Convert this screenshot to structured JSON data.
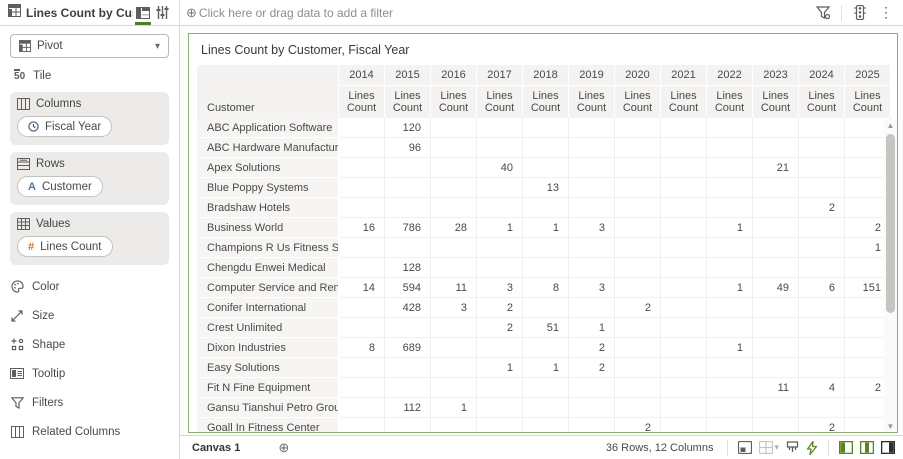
{
  "topbar": {
    "title": "Lines Count by Cust...",
    "filter_plus": "⊕",
    "filter_placeholder": "Click here or drag data to add a filter",
    "kebab": "⋮"
  },
  "sidebar": {
    "viz_type": "Pivot",
    "viz_caret": "▾",
    "tile_label": "Tile",
    "tile_glyph_5": "5",
    "tile_glyph_0": "0",
    "sections": {
      "columns": {
        "label": "Columns",
        "pill": "Fiscal Year"
      },
      "rows": {
        "label": "Rows",
        "pill": "Customer",
        "pill_glyph": "A"
      },
      "values": {
        "label": "Values",
        "pill": "Lines Count",
        "pill_glyph": "#"
      }
    },
    "options": [
      {
        "label": "Color"
      },
      {
        "label": "Size"
      },
      {
        "label": "Shape"
      },
      {
        "label": "Tooltip"
      },
      {
        "label": "Filters"
      },
      {
        "label": "Related Columns"
      }
    ]
  },
  "canvas": {
    "viz_title": "Lines Count by Customer, Fiscal Year"
  },
  "table": {
    "corner_label": "Customer",
    "measure_label": "Lines Count",
    "years": [
      "2014",
      "2015",
      "2016",
      "2017",
      "2018",
      "2019",
      "2020",
      "2021",
      "2022",
      "2023",
      "2024",
      "2025"
    ],
    "rows": [
      {
        "customer": "ABC Application Software",
        "values": [
          "",
          "120",
          "",
          "",
          "",
          "",
          "",
          "",
          "",
          "",
          "",
          ""
        ]
      },
      {
        "customer": "ABC Hardware Manufacturing",
        "values": [
          "",
          "96",
          "",
          "",
          "",
          "",
          "",
          "",
          "",
          "",
          "",
          ""
        ]
      },
      {
        "customer": "Apex Solutions",
        "values": [
          "",
          "",
          "",
          "40",
          "",
          "",
          "",
          "",
          "",
          "21",
          "",
          ""
        ]
      },
      {
        "customer": "Blue Poppy Systems",
        "values": [
          "",
          "",
          "",
          "",
          "13",
          "",
          "",
          "",
          "",
          "",
          "",
          ""
        ]
      },
      {
        "customer": "Bradshaw Hotels",
        "values": [
          "",
          "",
          "",
          "",
          "",
          "",
          "",
          "",
          "",
          "",
          "2",
          ""
        ]
      },
      {
        "customer": "Business World",
        "values": [
          "16",
          "786",
          "28",
          "1",
          "1",
          "3",
          "",
          "",
          "1",
          "",
          "",
          "2"
        ]
      },
      {
        "customer": "Champions R Us Fitness Store",
        "values": [
          "",
          "",
          "",
          "",
          "",
          "",
          "",
          "",
          "",
          "",
          "",
          "1"
        ]
      },
      {
        "customer": "Chengdu Enwei Medical",
        "values": [
          "",
          "128",
          "",
          "",
          "",
          "",
          "",
          "",
          "",
          "",
          "",
          ""
        ]
      },
      {
        "customer": "Computer Service and Rentals",
        "values": [
          "14",
          "594",
          "11",
          "3",
          "8",
          "3",
          "",
          "",
          "1",
          "49",
          "6",
          "151"
        ]
      },
      {
        "customer": "Conifer International",
        "values": [
          "",
          "428",
          "3",
          "2",
          "",
          "",
          "2",
          "",
          "",
          "",
          "",
          ""
        ]
      },
      {
        "customer": "Crest Unlimited",
        "values": [
          "",
          "",
          "",
          "2",
          "51",
          "1",
          "",
          "",
          "",
          "",
          "",
          ""
        ]
      },
      {
        "customer": "Dixon Industries",
        "values": [
          "8",
          "689",
          "",
          "",
          "",
          "2",
          "",
          "",
          "1",
          "",
          "",
          ""
        ]
      },
      {
        "customer": "Easy Solutions",
        "values": [
          "",
          "",
          "",
          "1",
          "1",
          "2",
          "",
          "",
          "",
          "",
          "",
          ""
        ]
      },
      {
        "customer": "Fit N Fine Equipment",
        "values": [
          "",
          "",
          "",
          "",
          "",
          "",
          "",
          "",
          "",
          "11",
          "4",
          "2"
        ]
      },
      {
        "customer": "Gansu Tianshui Petro Group",
        "values": [
          "",
          "112",
          "1",
          "",
          "",
          "",
          "",
          "",
          "",
          "",
          "",
          ""
        ]
      },
      {
        "customer": "Goall In Fitness Center",
        "values": [
          "",
          "",
          "",
          "",
          "",
          "",
          "2",
          "",
          "",
          "",
          "2",
          ""
        ]
      }
    ],
    "scroll_up": "▲",
    "scroll_down": "▼"
  },
  "statusbar": {
    "canvas_tab": "Canvas 1",
    "add_canvas": "⊕",
    "dimensions": "36 Rows, 12 Columns",
    "grid_caret": "▾"
  },
  "colors": {
    "accent_green": "#4f7d2b",
    "selection_border": "#8fae74",
    "measure_orange": "#e1701f",
    "attribute_blue": "#4a7ba6",
    "header_bg": "#f4f3f1"
  }
}
